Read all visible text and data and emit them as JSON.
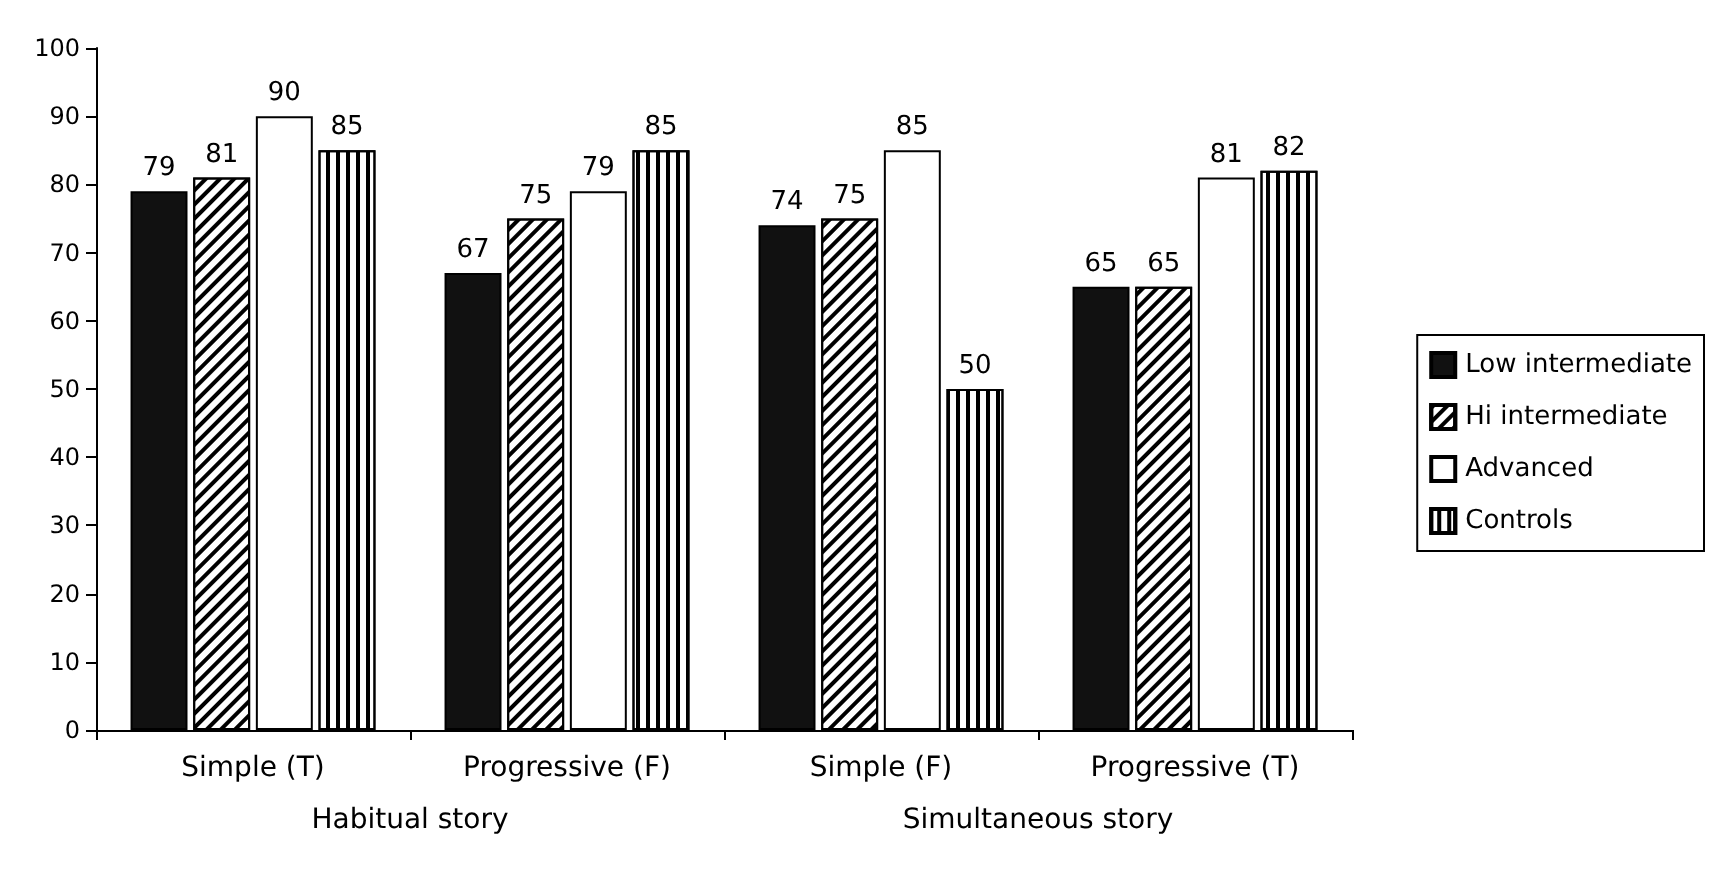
{
  "chart_data": {
    "type": "bar",
    "categories": [
      "Simple (T)",
      "Progressive (F)",
      "Simple (F)",
      "Progressive (T)"
    ],
    "series": [
      {
        "name": "Low intermediate",
        "color": "#111111",
        "values": [
          79,
          67,
          74,
          65
        ]
      },
      {
        "name": "Hi intermediate",
        "color": "#ffffff",
        "values": [
          81,
          75,
          75,
          65
        ]
      },
      {
        "name": "Advanced",
        "color": "#ffffff",
        "values": [
          90,
          79,
          85,
          81
        ]
      },
      {
        "name": "Controls",
        "color": "#ffffff",
        "values": [
          85,
          85,
          50,
          82
        ]
      }
    ],
    "annotations": [
      "Habitual story",
      "Simultaneous story"
    ],
    "ylim": [
      0,
      100
    ],
    "yticks": [
      0,
      10,
      20,
      30,
      40,
      50,
      60,
      70,
      80,
      90,
      100
    ],
    "grid": false,
    "legend": "right",
    "data_labels": true
  }
}
